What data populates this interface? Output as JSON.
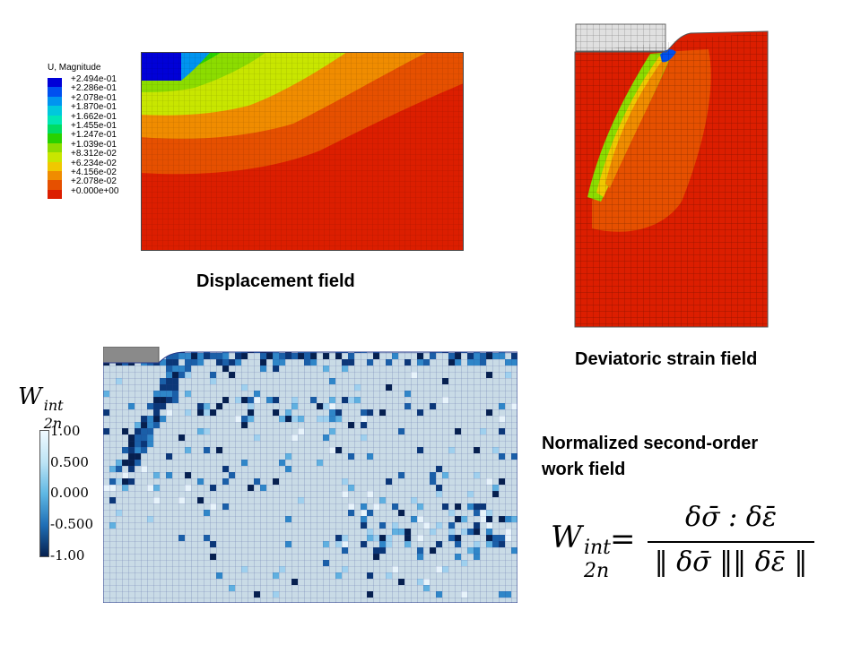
{
  "panels": {
    "displacement": {
      "legend_title": "U, Magnitude",
      "legend_values": [
        "+2.494e-01",
        "+2.286e-01",
        "+2.078e-01",
        "+1.870e-01",
        "+1.662e-01",
        "+1.455e-01",
        "+1.247e-01",
        "+1.039e-01",
        "+8.312e-02",
        "+6.234e-02",
        "+4.156e-02",
        "+2.078e-02",
        "+0.000e+00"
      ],
      "legend_colors": [
        "#0000d8",
        "#0050f0",
        "#0094f0",
        "#00c8dc",
        "#00e6b4",
        "#00dc64",
        "#28d200",
        "#8cdc00",
        "#c8e600",
        "#f0c800",
        "#f08c00",
        "#e65000",
        "#dc1e00"
      ],
      "caption": "Displacement field"
    },
    "deviatoric": {
      "caption": "Deviatoric strain field"
    },
    "work": {
      "symbol_base": "W",
      "symbol_sup": "int",
      "symbol_sub": "2n",
      "colorbar_ticks": [
        "1.00",
        "0.500",
        "0.000",
        "-0.500",
        "-1.00"
      ],
      "caption_line1": "Normalized second-order",
      "caption_line2": "work field"
    }
  },
  "formula": {
    "lhs_base": "W",
    "lhs_sup": "int",
    "lhs_sub": "2n",
    "equals": "=",
    "numerator": "δσ̄ : δε̄",
    "denominator": "‖ δσ̄ ‖‖ δε̄ ‖"
  }
}
